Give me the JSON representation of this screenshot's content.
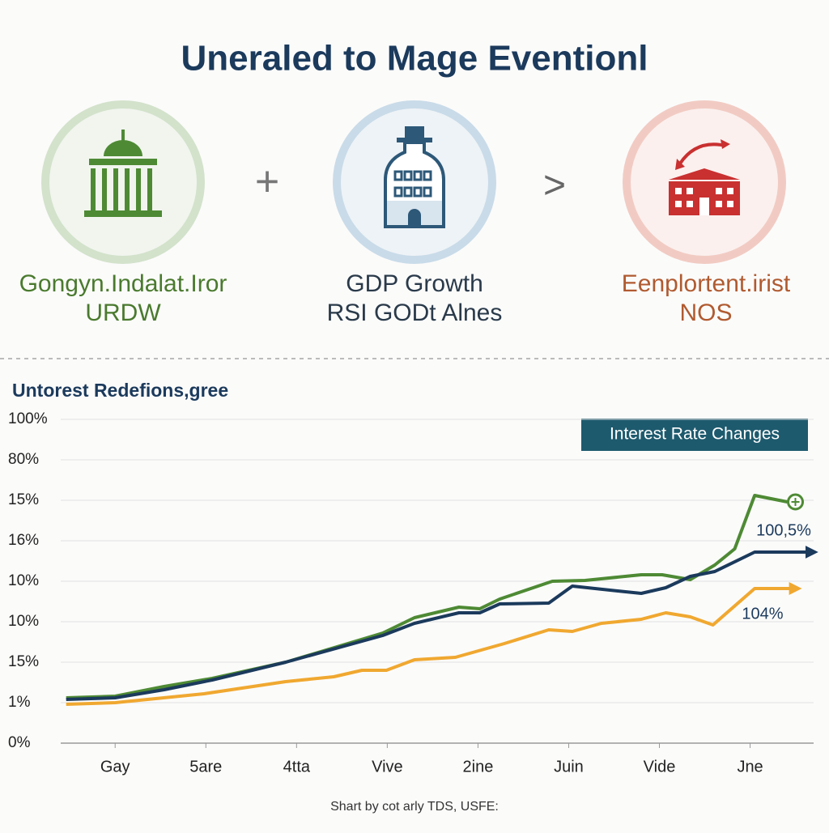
{
  "title": "Uneraled to Mage Eventionl",
  "panels": [
    {
      "lines": [
        "Gongyn.Indalat.Iror",
        "URDW"
      ]
    },
    {
      "lines": [
        "GDP Growth",
        "RSI GODt Alnes"
      ]
    },
    {
      "lines": [
        "Eenplortent.irist",
        "NOS"
      ]
    }
  ],
  "chart_data": {
    "type": "line",
    "title": "Untorest Redefions,gree",
    "badge": "Interest Rate Changes",
    "annotations": [
      {
        "text": "100,5%"
      },
      {
        "text": "104%"
      }
    ],
    "xlim": [
      -0.6,
      7.7
    ],
    "xticks": [
      {
        "value": 0,
        "label": "Gay"
      },
      {
        "value": 1,
        "label": "5are"
      },
      {
        "value": 2,
        "label": "4tta"
      },
      {
        "value": 3,
        "label": "Vive"
      },
      {
        "value": 4,
        "label": "2ine"
      },
      {
        "value": 5,
        "label": "Juin"
      },
      {
        "value": 6,
        "label": "Vide"
      },
      {
        "value": 7,
        "label": "Jne"
      }
    ],
    "ylim": [
      0,
      8
    ],
    "yticks": [
      {
        "value": 0,
        "label": "0%"
      },
      {
        "value": 1,
        "label": "1%"
      },
      {
        "value": 2,
        "label": "15%"
      },
      {
        "value": 3,
        "label": "10%"
      },
      {
        "value": 4,
        "label": "10%"
      },
      {
        "value": 5,
        "label": "16%"
      },
      {
        "value": 6,
        "label": "15%"
      },
      {
        "value": 7,
        "label": "80%"
      },
      {
        "value": 8,
        "label": "100%"
      }
    ],
    "grid": true,
    "series": [
      {
        "color": "#4e8a34",
        "x": [
          -0.54,
          0,
          0.54,
          1.07,
          1.88,
          2.95,
          3.3,
          3.79,
          4.02,
          4.24,
          4.82,
          5.18,
          5.8,
          6.03,
          6.34,
          6.61,
          6.83,
          7.05,
          7.41
        ],
        "values": [
          1.12,
          1.16,
          1.4,
          1.6,
          2.0,
          2.72,
          3.1,
          3.36,
          3.32,
          3.56,
          4.0,
          4.02,
          4.16,
          4.16,
          4.04,
          4.4,
          4.8,
          6.12,
          5.96
        ]
      },
      {
        "color": "#1b3a5c",
        "x": [
          -0.54,
          0,
          0.54,
          1.07,
          1.88,
          2.95,
          3.3,
          3.79,
          4.02,
          4.24,
          4.78,
          5.04,
          5.54,
          5.8,
          6.07,
          6.34,
          6.61,
          7.05,
          7.68
        ],
        "values": [
          1.08,
          1.12,
          1.32,
          1.56,
          2.0,
          2.66,
          2.96,
          3.22,
          3.22,
          3.44,
          3.46,
          3.88,
          3.76,
          3.7,
          3.84,
          4.12,
          4.24,
          4.72,
          4.72
        ]
      },
      {
        "color": "#f0a830",
        "x": [
          -0.54,
          0,
          0.98,
          1.88,
          2.41,
          2.72,
          2.99,
          3.3,
          3.75,
          4.29,
          4.78,
          5.04,
          5.36,
          5.8,
          6.07,
          6.34,
          6.59,
          7.05,
          7.5
        ],
        "values": [
          0.96,
          1.0,
          1.22,
          1.52,
          1.64,
          1.8,
          1.8,
          2.06,
          2.12,
          2.46,
          2.8,
          2.76,
          2.96,
          3.06,
          3.22,
          3.12,
          2.92,
          3.82,
          3.82
        ]
      }
    ]
  },
  "footer": "Shart by cot arly TDS, USFE:"
}
